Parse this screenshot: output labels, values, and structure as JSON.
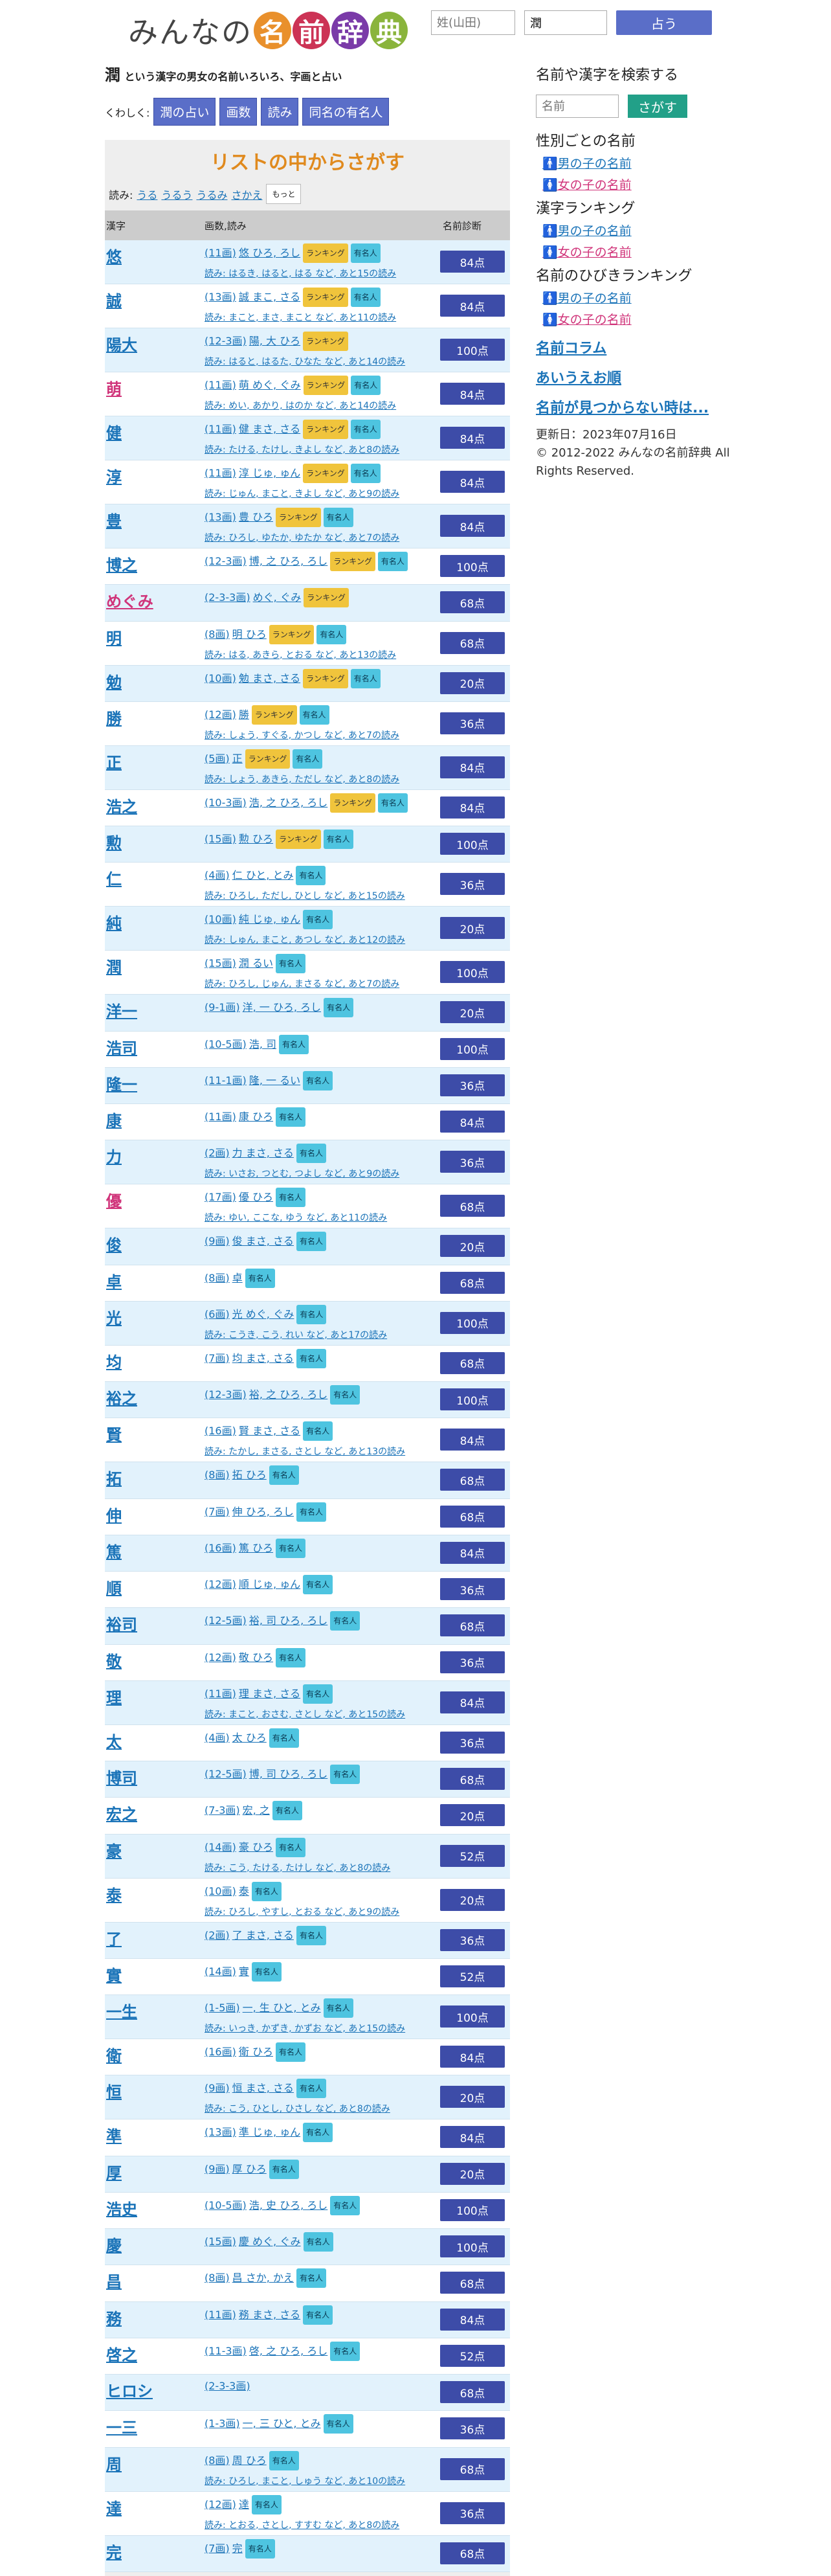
{
  "header": {
    "logo_pre": "みんなの",
    "logo_chars": [
      "名",
      "前",
      "辞",
      "典"
    ],
    "surname_placeholder": "姓(山田)",
    "given_value": "潤",
    "submit_label": "占う"
  },
  "title": {
    "kanji": "潤",
    "rest": "という漢字の男女の名前いろいろ、字画と占い"
  },
  "kuwashiku": {
    "label": "くわしく:",
    "buttons": [
      "潤の占い",
      "画数",
      "読み",
      "同名の有名人"
    ]
  },
  "list": {
    "heading": "リストの中からさがす",
    "readings_label": "読み:",
    "readings": [
      "うる",
      "うるう",
      "うるみ",
      "さかえ"
    ],
    "more_label": "もっと",
    "col_kanji": "漢字",
    "col_strokes": "画数,読み",
    "col_score": "名前診断",
    "rows": [
      {
        "k": "悠",
        "pink": false,
        "strokes": "(11画)",
        "head": "悠 ひろ, ろし",
        "rank": true,
        "fame": true,
        "reading": "読み: はるき, はると, はる など, あと15の読み",
        "score": "84点"
      },
      {
        "k": "誠",
        "pink": false,
        "strokes": "(13画)",
        "head": "誠 まこ, さる",
        "rank": true,
        "fame": true,
        "reading": "読み: まこと, まさ, まこと など, あと11の読み",
        "score": "84点"
      },
      {
        "k": "陽大",
        "pink": false,
        "strokes": "(12-3画)",
        "head": "陽, 大 ひろ",
        "rank": true,
        "fame": false,
        "reading": "読み: はると, はるた, ひなた など, あと14の読み",
        "score": "100点"
      },
      {
        "k": "萌",
        "pink": true,
        "strokes": "(11画)",
        "head": "萌 めぐ, ぐみ",
        "rank": true,
        "fame": true,
        "reading": "読み: めい, あかり, はのか など, あと14の読み",
        "score": "84点"
      },
      {
        "k": "健",
        "pink": false,
        "strokes": "(11画)",
        "head": "健 まさ, さる",
        "rank": true,
        "fame": true,
        "reading": "読み: たける, たけし, きよし など, あと8の読み",
        "score": "84点"
      },
      {
        "k": "淳",
        "pink": false,
        "strokes": "(11画)",
        "head": "淳 じゅ, ゅん",
        "rank": true,
        "fame": true,
        "reading": "読み: じゅん, まこと, きよし など, あと9の読み",
        "score": "84点"
      },
      {
        "k": "豊",
        "pink": false,
        "strokes": "(13画)",
        "head": "豊 ひろ",
        "rank": true,
        "fame": true,
        "reading": "読み: ひろし, ゆたか, ゆたか など, あと7の読み",
        "score": "84点"
      },
      {
        "k": "博之",
        "pink": false,
        "strokes": "(12-3画)",
        "head": "博, 之 ひろ, ろし",
        "rank": true,
        "fame": true,
        "reading": "",
        "score": "100点"
      },
      {
        "k": "めぐみ",
        "pink": true,
        "strokes": "(2-3-3画)",
        "head": "めぐ, ぐみ",
        "rank": true,
        "fame": false,
        "reading": "",
        "score": "68点"
      },
      {
        "k": "明",
        "pink": false,
        "strokes": "(8画)",
        "head": "明 ひろ",
        "rank": true,
        "fame": true,
        "reading": "読み: はる, あきら, とおる など, あと13の読み",
        "score": "68点"
      },
      {
        "k": "勉",
        "pink": false,
        "strokes": "(10画)",
        "head": "勉 まさ, さる",
        "rank": true,
        "fame": true,
        "reading": "",
        "score": "20点"
      },
      {
        "k": "勝",
        "pink": false,
        "strokes": "(12画)",
        "head": "勝",
        "rank": true,
        "fame": true,
        "reading": "読み: しょう, すぐる, かつし など, あと7の読み",
        "score": "36点"
      },
      {
        "k": "正",
        "pink": false,
        "strokes": "(5画)",
        "head": "正",
        "rank": true,
        "fame": true,
        "reading": "読み: しょう, あきら, ただし など, あと8の読み",
        "score": "84点"
      },
      {
        "k": "浩之",
        "pink": false,
        "strokes": "(10-3画)",
        "head": "浩, 之 ひろ, ろし",
        "rank": true,
        "fame": true,
        "reading": "",
        "score": "84点"
      },
      {
        "k": "勲",
        "pink": false,
        "strokes": "(15画)",
        "head": "勲 ひろ",
        "rank": true,
        "fame": true,
        "reading": "",
        "score": "100点"
      },
      {
        "k": "仁",
        "pink": false,
        "strokes": "(4画)",
        "head": "仁 ひと, とみ",
        "rank": false,
        "fame": true,
        "reading": "読み: ひろし, ただし, ひとし など, あと15の読み",
        "score": "36点"
      },
      {
        "k": "純",
        "pink": false,
        "strokes": "(10画)",
        "head": "純 じゅ, ゅん",
        "rank": false,
        "fame": true,
        "reading": "読み: しゅん, まこと, あつし など, あと12の読み",
        "score": "20点"
      },
      {
        "k": "潤",
        "pink": false,
        "strokes": "(15画)",
        "head": "潤 るい",
        "rank": false,
        "fame": true,
        "reading": "読み: ひろし, じゅん, まさる など, あと7の読み",
        "score": "100点"
      },
      {
        "k": "洋一",
        "pink": false,
        "strokes": "(9-1画)",
        "head": "洋, 一 ひろ, ろし",
        "rank": false,
        "fame": true,
        "reading": "",
        "score": "20点"
      },
      {
        "k": "浩司",
        "pink": false,
        "strokes": "(10-5画)",
        "head": "浩, 司",
        "rank": false,
        "fame": true,
        "reading": "",
        "score": "100点"
      },
      {
        "k": "隆一",
        "pink": false,
        "strokes": "(11-1画)",
        "head": "隆, 一 るい",
        "rank": false,
        "fame": true,
        "reading": "",
        "score": "36点"
      },
      {
        "k": "康",
        "pink": false,
        "strokes": "(11画)",
        "head": "康 ひろ",
        "rank": false,
        "fame": true,
        "reading": "",
        "score": "84点"
      },
      {
        "k": "力",
        "pink": false,
        "strokes": "(2画)",
        "head": "力 まさ, さる",
        "rank": false,
        "fame": true,
        "reading": "読み: いさお, つとむ, つよし など, あと9の読み",
        "score": "36点"
      },
      {
        "k": "優",
        "pink": true,
        "strokes": "(17画)",
        "head": "優 ひろ",
        "rank": false,
        "fame": true,
        "reading": "読み: ゆい, ここな, ゆう など, あと11の読み",
        "score": "68点"
      },
      {
        "k": "俊",
        "pink": false,
        "strokes": "(9画)",
        "head": "俊 まさ, さる",
        "rank": false,
        "fame": true,
        "reading": "",
        "score": "20点"
      },
      {
        "k": "卓",
        "pink": false,
        "strokes": "(8画)",
        "head": "卓",
        "rank": false,
        "fame": true,
        "reading": "",
        "score": "68点"
      },
      {
        "k": "光",
        "pink": false,
        "strokes": "(6画)",
        "head": "光 めぐ, ぐみ",
        "rank": false,
        "fame": true,
        "reading": "読み: こうき, こう, れい など, あと17の読み",
        "score": "100点"
      },
      {
        "k": "均",
        "pink": false,
        "strokes": "(7画)",
        "head": "均 まさ, さる",
        "rank": false,
        "fame": true,
        "reading": "",
        "score": "68点"
      },
      {
        "k": "裕之",
        "pink": false,
        "strokes": "(12-3画)",
        "head": "裕, 之 ひろ, ろし",
        "rank": false,
        "fame": true,
        "reading": "",
        "score": "100点"
      },
      {
        "k": "賢",
        "pink": false,
        "strokes": "(16画)",
        "head": "賢 まさ, さる",
        "rank": false,
        "fame": true,
        "reading": "読み: たかし, まさる, さとし など, あと13の読み",
        "score": "84点"
      },
      {
        "k": "拓",
        "pink": false,
        "strokes": "(8画)",
        "head": "拓 ひろ",
        "rank": false,
        "fame": true,
        "reading": "",
        "score": "68点"
      },
      {
        "k": "伸",
        "pink": false,
        "strokes": "(7画)",
        "head": "伸 ひろ, ろし",
        "rank": false,
        "fame": true,
        "reading": "",
        "score": "68点"
      },
      {
        "k": "篤",
        "pink": false,
        "strokes": "(16画)",
        "head": "篤 ひろ",
        "rank": false,
        "fame": true,
        "reading": "",
        "score": "84点"
      },
      {
        "k": "順",
        "pink": false,
        "strokes": "(12画)",
        "head": "順 じゅ, ゅん",
        "rank": false,
        "fame": true,
        "reading": "",
        "score": "36点"
      },
      {
        "k": "裕司",
        "pink": false,
        "strokes": "(12-5画)",
        "head": "裕, 司 ひろ, ろし",
        "rank": false,
        "fame": true,
        "reading": "",
        "score": "68点"
      },
      {
        "k": "敬",
        "pink": false,
        "strokes": "(12画)",
        "head": "敬 ひろ",
        "rank": false,
        "fame": true,
        "reading": "",
        "score": "36点"
      },
      {
        "k": "理",
        "pink": false,
        "strokes": "(11画)",
        "head": "理 まさ, さる",
        "rank": false,
        "fame": true,
        "reading": "読み: まこと, おさむ, さとし など, あと15の読み",
        "score": "84点"
      },
      {
        "k": "太",
        "pink": false,
        "strokes": "(4画)",
        "head": "太 ひろ",
        "rank": false,
        "fame": true,
        "reading": "",
        "score": "36点"
      },
      {
        "k": "博司",
        "pink": false,
        "strokes": "(12-5画)",
        "head": "博, 司 ひろ, ろし",
        "rank": false,
        "fame": true,
        "reading": "",
        "score": "68点"
      },
      {
        "k": "宏之",
        "pink": false,
        "strokes": "(7-3画)",
        "head": "宏, 之",
        "rank": false,
        "fame": true,
        "reading": "",
        "score": "20点"
      },
      {
        "k": "豪",
        "pink": false,
        "strokes": "(14画)",
        "head": "豪 ひろ",
        "rank": false,
        "fame": true,
        "reading": "読み: こう, たける, たけし など, あと8の読み",
        "score": "52点"
      },
      {
        "k": "泰",
        "pink": false,
        "strokes": "(10画)",
        "head": "泰",
        "rank": false,
        "fame": true,
        "reading": "読み: ひろし, やすし, とおる など, あと9の読み",
        "score": "20点"
      },
      {
        "k": "了",
        "pink": false,
        "strokes": "(2画)",
        "head": "了 まさ, さる",
        "rank": false,
        "fame": true,
        "reading": "",
        "score": "36点"
      },
      {
        "k": "實",
        "pink": false,
        "strokes": "(14画)",
        "head": "實",
        "rank": false,
        "fame": true,
        "reading": "",
        "score": "52点"
      },
      {
        "k": "一生",
        "pink": false,
        "strokes": "(1-5画)",
        "head": "一, 生 ひと, とみ",
        "rank": false,
        "fame": true,
        "reading": "読み: いっき, かずき, かずお など, あと15の読み",
        "score": "100点"
      },
      {
        "k": "衛",
        "pink": false,
        "strokes": "(16画)",
        "head": "衛 ひろ",
        "rank": false,
        "fame": true,
        "reading": "",
        "score": "84点"
      },
      {
        "k": "恒",
        "pink": false,
        "strokes": "(9画)",
        "head": "恒 まさ, さる",
        "rank": false,
        "fame": true,
        "reading": "読み: こう, ひとし, ひさし など, あと8の読み",
        "score": "20点"
      },
      {
        "k": "準",
        "pink": false,
        "strokes": "(13画)",
        "head": "準 じゅ, ゅん",
        "rank": false,
        "fame": true,
        "reading": "",
        "score": "84点"
      },
      {
        "k": "厚",
        "pink": false,
        "strokes": "(9画)",
        "head": "厚 ひろ",
        "rank": false,
        "fame": true,
        "reading": "",
        "score": "20点"
      },
      {
        "k": "浩史",
        "pink": false,
        "strokes": "(10-5画)",
        "head": "浩, 史 ひろ, ろし",
        "rank": false,
        "fame": true,
        "reading": "",
        "score": "100点"
      },
      {
        "k": "慶",
        "pink": false,
        "strokes": "(15画)",
        "head": "慶 めぐ, ぐみ",
        "rank": false,
        "fame": true,
        "reading": "",
        "score": "100点"
      },
      {
        "k": "昌",
        "pink": false,
        "strokes": "(8画)",
        "head": "昌 さか, かえ",
        "rank": false,
        "fame": true,
        "reading": "",
        "score": "68点"
      },
      {
        "k": "務",
        "pink": false,
        "strokes": "(11画)",
        "head": "務 まさ, さる",
        "rank": false,
        "fame": true,
        "reading": "",
        "score": "84点"
      },
      {
        "k": "啓之",
        "pink": false,
        "strokes": "(11-3画)",
        "head": "啓, 之 ひろ, ろし",
        "rank": false,
        "fame": true,
        "reading": "",
        "score": "52点"
      },
      {
        "k": "ヒロシ",
        "pink": false,
        "strokes": "(2-3-3画)",
        "head": "",
        "rank": false,
        "fame": false,
        "reading": "",
        "score": "68点"
      },
      {
        "k": "一三",
        "pink": false,
        "strokes": "(1-3画)",
        "head": "一, 三 ひと, とみ",
        "rank": false,
        "fame": true,
        "reading": "",
        "score": "36点"
      },
      {
        "k": "周",
        "pink": false,
        "strokes": "(8画)",
        "head": "周 ひろ",
        "rank": false,
        "fame": true,
        "reading": "読み: ひろし, まこと, しゅう など, あと10の読み",
        "score": "68点"
      },
      {
        "k": "達",
        "pink": false,
        "strokes": "(12画)",
        "head": "達",
        "rank": false,
        "fame": true,
        "reading": "読み: とおる, さとし, すすむ など, あと8の読み",
        "score": "36点"
      },
      {
        "k": "完",
        "pink": false,
        "strokes": "(7画)",
        "head": "完",
        "rank": false,
        "fame": true,
        "reading": "",
        "score": "68点"
      }
    ]
  },
  "badges": {
    "rank": "ランキング",
    "fame": "有名人"
  },
  "sidebar": {
    "search_heading": "名前や漢字を検索する",
    "search_placeholder": "名前",
    "search_button": "さがす",
    "gender_heading": "性別ごとの名前",
    "kanji_heading": "漢字ランキング",
    "hibiki_heading": "名前のひびきランキング",
    "boy_label": "男の子の名前",
    "girl_label": "女の子の名前",
    "column_link": "名前コラム",
    "aiueo_link": "あいうえお順",
    "notfound_link": "名前が見つからない時は...",
    "updated": "更新日：2023年07月16日",
    "copyright": "© 2012-2022 みんなの名前辞典 All Rights Reserved."
  }
}
